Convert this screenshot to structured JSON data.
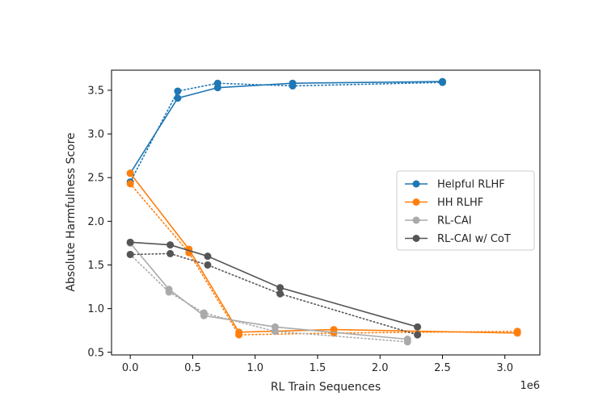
{
  "chart_data": {
    "type": "line",
    "xlabel": "RL Train Sequences",
    "ylabel": "Absolute Harmfulness Score",
    "x_offset_label": "1e6",
    "xlim": [
      -0.15,
      3.28
    ],
    "ylim": [
      0.47,
      3.73
    ],
    "x_scale": 1000000,
    "xticks": [
      0.0,
      0.5,
      1.0,
      1.5,
      2.0,
      2.5,
      3.0
    ],
    "xtick_labels": [
      "0.0",
      "0.5",
      "1.0",
      "1.5",
      "2.0",
      "2.5",
      "3.0"
    ],
    "yticks": [
      0.5,
      1.0,
      1.5,
      2.0,
      2.5,
      3.0,
      3.5
    ],
    "ytick_labels": [
      "0.5",
      "1.0",
      "1.5",
      "2.0",
      "2.5",
      "3.0",
      "3.5"
    ],
    "legend_position": "center-right",
    "grid": false,
    "series": [
      {
        "name": "Helpful RLHF",
        "color": "#1f77b4",
        "solid": [
          [
            0.0,
            2.55
          ],
          [
            0.38,
            3.41
          ],
          [
            0.7,
            3.53
          ],
          [
            1.3,
            3.58
          ],
          [
            2.5,
            3.6
          ]
        ],
        "dotted": [
          [
            0.0,
            2.45
          ],
          [
            0.38,
            3.49
          ],
          [
            0.7,
            3.58
          ],
          [
            1.3,
            3.55
          ],
          [
            2.5,
            3.59
          ]
        ]
      },
      {
        "name": "HH RLHF",
        "color": "#ff7f0e",
        "solid": [
          [
            0.0,
            2.55
          ],
          [
            0.47,
            1.68
          ],
          [
            0.87,
            0.73
          ],
          [
            1.63,
            0.76
          ],
          [
            3.1,
            0.72
          ]
        ],
        "dotted": [
          [
            0.0,
            2.43
          ],
          [
            0.47,
            1.64
          ],
          [
            0.87,
            0.7
          ],
          [
            1.63,
            0.72
          ],
          [
            3.1,
            0.74
          ]
        ]
      },
      {
        "name": "RL-CAI",
        "color": "#aaaaaa",
        "solid": [
          [
            0.0,
            1.75
          ],
          [
            0.31,
            1.22
          ],
          [
            0.59,
            0.92
          ],
          [
            1.16,
            0.79
          ],
          [
            2.22,
            0.65
          ]
        ],
        "dotted": [
          [
            0.0,
            1.62
          ],
          [
            0.31,
            1.19
          ],
          [
            0.59,
            0.95
          ],
          [
            1.16,
            0.74
          ],
          [
            2.22,
            0.62
          ]
        ]
      },
      {
        "name": "RL-CAI w/ CoT",
        "color": "#555555",
        "solid": [
          [
            0.0,
            1.76
          ],
          [
            0.32,
            1.73
          ],
          [
            0.62,
            1.6
          ],
          [
            1.2,
            1.24
          ],
          [
            2.3,
            0.79
          ]
        ],
        "dotted": [
          [
            0.0,
            1.62
          ],
          [
            0.32,
            1.63
          ],
          [
            0.62,
            1.5
          ],
          [
            1.2,
            1.17
          ],
          [
            2.3,
            0.7
          ]
        ]
      }
    ]
  }
}
